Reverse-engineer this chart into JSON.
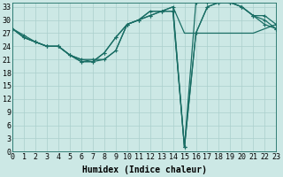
{
  "xlabel": "Humidex (Indice chaleur)",
  "bg_color": "#cce8e5",
  "grid_color": "#aacfcc",
  "line_color": "#1a6e65",
  "xlim": [
    0,
    23
  ],
  "ylim": [
    0,
    34
  ],
  "xticks": [
    0,
    1,
    2,
    3,
    4,
    5,
    6,
    7,
    8,
    9,
    10,
    11,
    12,
    13,
    14,
    15,
    16,
    17,
    18,
    19,
    20,
    21,
    22,
    23
  ],
  "yticks": [
    0,
    3,
    6,
    9,
    12,
    15,
    18,
    21,
    24,
    27,
    30,
    33
  ],
  "series1_y": [
    28,
    26,
    25,
    24,
    24,
    22,
    21,
    20.5,
    21,
    23,
    29,
    30,
    32,
    32,
    33,
    27,
    27,
    27,
    27,
    27,
    27,
    27,
    28,
    29
  ],
  "series2_y": [
    28,
    26,
    25,
    24,
    24,
    22,
    20.5,
    20.5,
    22.5,
    26,
    29,
    30,
    31,
    32,
    32,
    1,
    27,
    33,
    34,
    34,
    33,
    31,
    29,
    28
  ],
  "series3_y": [
    28,
    26,
    25,
    24,
    24,
    22,
    20.5,
    20.5,
    22.5,
    26,
    29,
    30,
    31,
    32,
    32,
    1,
    27,
    33,
    34,
    34,
    33,
    31,
    30,
    28
  ],
  "series4_y": [
    28,
    26.5,
    25,
    24,
    24,
    22,
    21,
    21,
    21,
    23,
    29,
    30,
    32,
    32,
    33,
    1,
    34,
    34,
    34,
    34,
    33,
    31,
    31,
    29
  ],
  "fontsize_label": 7,
  "fontsize_tick": 6,
  "lw": 0.9
}
